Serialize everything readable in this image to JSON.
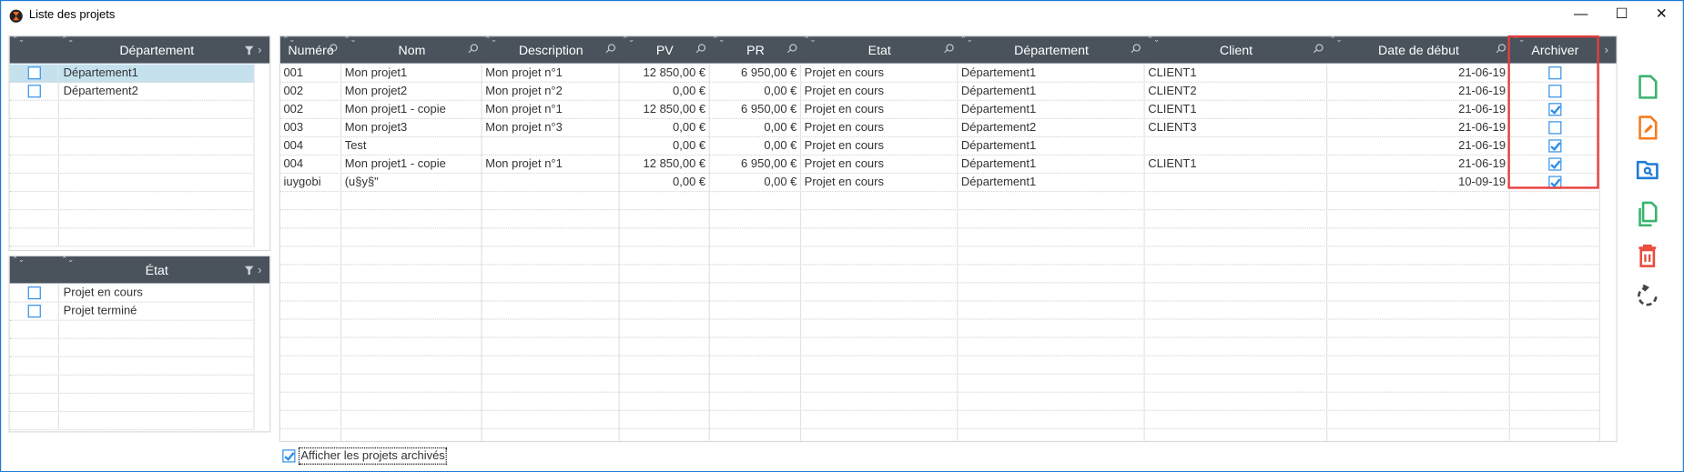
{
  "window": {
    "title": "Liste des projets",
    "minimize": "—",
    "maximize": "☐",
    "close": "✕"
  },
  "colors": {
    "header_bg": "#4a535c",
    "accent": "#2b8ee8",
    "selected_row": "#c5e1ee",
    "highlight_box": "#e83c3c",
    "icon_new": "#3ab36e",
    "icon_edit": "#f57c1f",
    "icon_open": "#1e7bd6",
    "icon_copy": "#3ab36e",
    "icon_delete": "#e84c3d",
    "icon_refresh": "#444444"
  },
  "departement_filter": {
    "header": "Département",
    "items": [
      {
        "label": "Département1",
        "checked": false,
        "selected": true
      },
      {
        "label": "Département2",
        "checked": false,
        "selected": false
      }
    ]
  },
  "etat_filter": {
    "header": "État",
    "items": [
      {
        "label": "Projet en cours",
        "checked": false
      },
      {
        "label": "Projet terminé",
        "checked": false
      }
    ]
  },
  "grid": {
    "columns": [
      "Numéro",
      "Nom",
      "Description",
      "PV",
      "PR",
      "Etat",
      "Département",
      "Client",
      "Date de début",
      "Archiver"
    ],
    "rows": [
      {
        "numero": "001",
        "nom": "Mon projet1",
        "description": "Mon projet n°1",
        "pv": "12 850,00 €",
        "pr": "6 950,00 €",
        "etat": "Projet en cours",
        "departement": "Département1",
        "client": "CLIENT1",
        "date": "21-06-19",
        "archiver": false
      },
      {
        "numero": "002",
        "nom": "Mon projet2",
        "description": "Mon projet n°2",
        "pv": "0,00 €",
        "pr": "0,00 €",
        "etat": "Projet en cours",
        "departement": "Département1",
        "client": "CLIENT2",
        "date": "21-06-19",
        "archiver": false
      },
      {
        "numero": "002",
        "nom": "Mon projet1 - copie",
        "description": "Mon projet n°1",
        "pv": "12 850,00 €",
        "pr": "6 950,00 €",
        "etat": "Projet en cours",
        "departement": "Département1",
        "client": "CLIENT1",
        "date": "21-06-19",
        "archiver": true
      },
      {
        "numero": "003",
        "nom": "Mon projet3",
        "description": "Mon projet n°3",
        "pv": "0,00 €",
        "pr": "0,00 €",
        "etat": "Projet en cours",
        "departement": "Département2",
        "client": "CLIENT3",
        "date": "21-06-19",
        "archiver": false
      },
      {
        "numero": "004",
        "nom": "Test",
        "description": "",
        "pv": "0,00 €",
        "pr": "0,00 €",
        "etat": "Projet en cours",
        "departement": "Département1",
        "client": "",
        "date": "21-06-19",
        "archiver": true
      },
      {
        "numero": "004",
        "nom": "Mon projet1 - copie",
        "description": "Mon projet n°1",
        "pv": "12 850,00 €",
        "pr": "6 950,00 €",
        "etat": "Projet en cours",
        "departement": "Département1",
        "client": "CLIENT1",
        "date": "21-06-19",
        "archiver": true
      },
      {
        "numero": "iuygobi",
        "nom": "(u§y§\"",
        "description": "",
        "pv": "0,00 €",
        "pr": "0,00 €",
        "etat": "Projet en cours",
        "departement": "Département1",
        "client": "",
        "date": "10-09-19",
        "archiver": true
      }
    ]
  },
  "toolbar": [
    {
      "icon": "new-document-icon"
    },
    {
      "icon": "edit-document-icon"
    },
    {
      "icon": "open-folder-search-icon"
    },
    {
      "icon": "copy-document-icon"
    },
    {
      "icon": "delete-trash-icon"
    },
    {
      "icon": "refresh-icon"
    }
  ],
  "show_archived": {
    "label": "Afficher les projets archivés",
    "checked": true
  }
}
